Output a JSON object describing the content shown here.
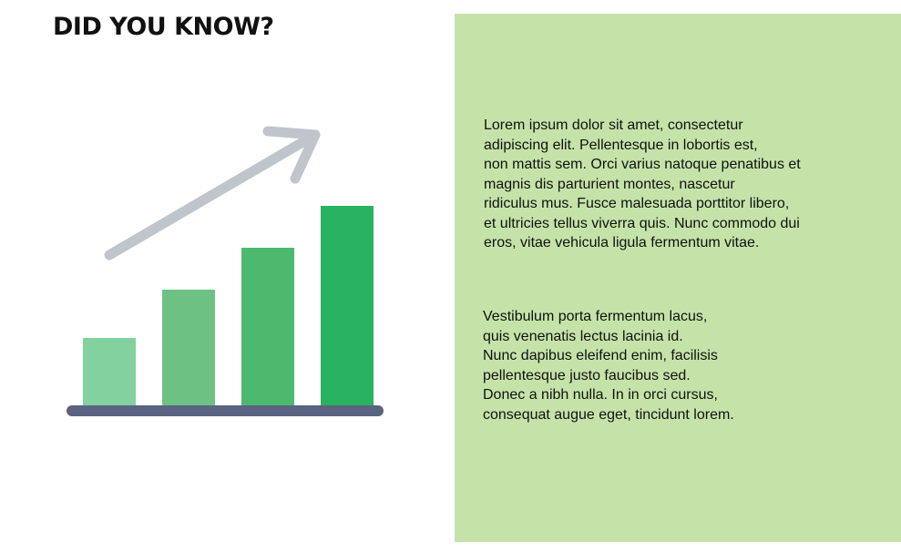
{
  "heading": "DID YOU KNOW?",
  "illustration": {
    "icon": "growth-bar-chart-icon",
    "bars": [
      {
        "level": 0.34,
        "color": "#82d19f"
      },
      {
        "level": 0.58,
        "color": "#6dc283"
      },
      {
        "level": 0.79,
        "color": "#4db96f"
      },
      {
        "level": 1.0,
        "color": "#27b35f"
      }
    ],
    "arrow_color": "#bfc5ca",
    "baseline_color": "#5a6480"
  },
  "panel": {
    "background": "#c5e3a9",
    "paragraph_1": "Lorem ipsum dolor sit amet, consectetur\nadipiscing elit. Pellentesque in lobortis est,\nnon mattis sem. Orci varius natoque penatibus et\nmagnis dis parturient montes, nascetur\nridiculus mus. Fusce malesuada porttitor libero,\net ultricies tellus viverra quis. Nunc commodo dui\neros, vitae vehicula ligula fermentum vitae.",
    "paragraph_2": "Vestibulum porta fermentum lacus,\nquis venenatis lectus lacinia id.\nNunc dapibus eleifend enim, facilisis\npellentesque justo faucibus sed.\nDonec a nibh nulla. In in orci cursus,\nconsequat augue eget, tincidunt lorem."
  }
}
